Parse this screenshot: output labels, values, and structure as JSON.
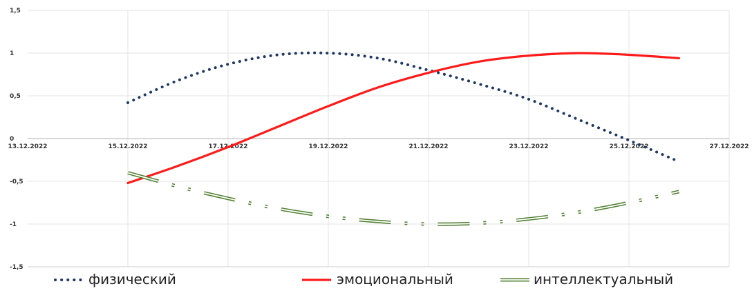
{
  "chart_data": {
    "type": "line",
    "title": "",
    "xlabel": "",
    "ylabel": "",
    "ylim": [
      -1.5,
      1.5
    ],
    "yticks": [
      1.5,
      1,
      0.5,
      0,
      -0.5,
      -1,
      -1.5
    ],
    "ytick_labels": [
      "1,5",
      "1",
      "0,5",
      "0",
      "-0,5",
      "-1",
      "-1,5"
    ],
    "xlim": [
      "13.12.2022",
      "27.12.2022"
    ],
    "xtick_labels": [
      "13.12.2022",
      "15.12.2022",
      "17.12.2022",
      "19.12.2022",
      "21.12.2022",
      "23.12.2022",
      "25.12.2022",
      "27.12.2022"
    ],
    "grid": true,
    "legend": "bottom",
    "x": [
      "15.12.2022",
      "16.12.2022",
      "17.12.2022",
      "18.12.2022",
      "19.12.2022",
      "20.12.2022",
      "21.12.2022",
      "22.12.2022",
      "23.12.2022",
      "24.12.2022",
      "25.12.2022",
      "26.12.2022"
    ],
    "series": [
      {
        "name": "физический",
        "style": "dotted",
        "color": "#1f3864",
        "values": [
          0.42,
          0.68,
          0.87,
          0.98,
          1.0,
          0.94,
          0.8,
          0.64,
          0.46,
          0.22,
          -0.02,
          -0.27
        ]
      },
      {
        "name": "эмоциональный",
        "style": "solid",
        "color": "#ff1a1a",
        "values": [
          -0.52,
          -0.32,
          -0.1,
          0.14,
          0.38,
          0.6,
          0.77,
          0.9,
          0.97,
          1.0,
          0.98,
          0.94
        ]
      },
      {
        "name": "интеллектуальный",
        "style": "dash-dot-double",
        "color": "#548235",
        "values": [
          -0.4,
          -0.56,
          -0.7,
          -0.82,
          -0.91,
          -0.97,
          -1.0,
          -0.99,
          -0.94,
          -0.86,
          -0.75,
          -0.62
        ]
      }
    ]
  }
}
